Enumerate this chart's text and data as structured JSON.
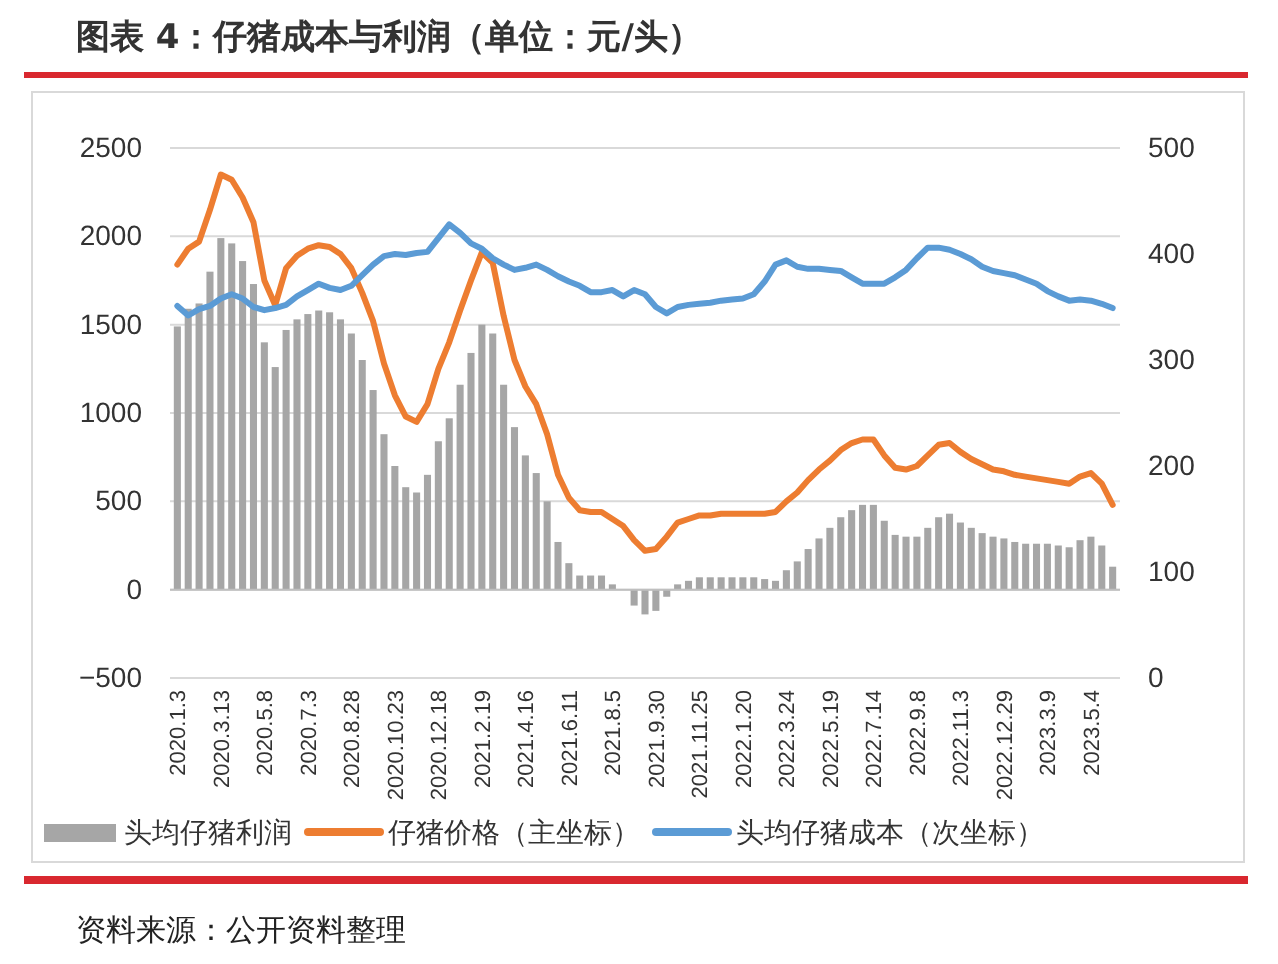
{
  "chart_data": {
    "type": "bar",
    "title": "图表 4：仔猪成本与利润（单位：元/头）",
    "categories": [
      "2020.1.3",
      null,
      null,
      null,
      "2020.3.13",
      null,
      null,
      null,
      "2020.5.8",
      null,
      null,
      null,
      "2020.7.3",
      null,
      null,
      null,
      "2020.8.28",
      null,
      null,
      null,
      "2020.10.23",
      null,
      null,
      null,
      "2020.12.18",
      null,
      null,
      null,
      "2021.2.19",
      null,
      null,
      null,
      "2021.4.16",
      null,
      null,
      null,
      "2021.6.11",
      null,
      null,
      null,
      "2021.8.5",
      null,
      null,
      null,
      "2021.9.30",
      null,
      null,
      null,
      "2021.11.25",
      null,
      null,
      null,
      "2022.1.20",
      null,
      null,
      null,
      "2022.3.24",
      null,
      null,
      null,
      "2022.5.19",
      null,
      null,
      null,
      "2022.7.14",
      null,
      null,
      null,
      "2022.9.8",
      null,
      null,
      null,
      "2022.11.3",
      null,
      null,
      null,
      "2022.12.29",
      null,
      null,
      null,
      "2023.3.9",
      null,
      null,
      null,
      "2023.5.4",
      null,
      null
    ],
    "series": [
      {
        "name": "头均仔猪利润",
        "color": "#a6a6a6",
        "values": [
          1490,
          1590,
          1620,
          1800,
          1990,
          1960,
          1860,
          1730,
          1400,
          1260,
          1470,
          1530,
          1560,
          1580,
          1570,
          1530,
          1450,
          1300,
          1130,
          880,
          700,
          580,
          550,
          650,
          840,
          970,
          1160,
          1340,
          1500,
          1450,
          1160,
          920,
          760,
          660,
          500,
          270,
          150,
          80,
          80,
          80,
          30,
          0,
          -90,
          -140,
          -120,
          -40,
          30,
          50,
          70,
          70,
          70,
          70,
          70,
          70,
          60,
          50,
          110,
          160,
          230,
          290,
          350,
          410,
          450,
          480,
          480,
          390,
          310,
          300,
          300,
          350,
          410,
          430,
          380,
          350,
          320,
          300,
          290,
          270,
          260,
          260,
          260,
          250,
          240,
          280,
          300,
          250,
          130
        ]
      },
      {
        "name": "仔猪价格（主坐标）",
        "type": "line",
        "color": "#ed7d31",
        "values": [
          1840,
          1930,
          1970,
          2150,
          2350,
          2320,
          2220,
          2080,
          1750,
          1610,
          1820,
          1890,
          1930,
          1950,
          1940,
          1900,
          1820,
          1680,
          1520,
          1280,
          1100,
          980,
          950,
          1050,
          1250,
          1400,
          1580,
          1750,
          1910,
          1850,
          1550,
          1300,
          1150,
          1050,
          880,
          650,
          520,
          450,
          440,
          440,
          400,
          360,
          280,
          220,
          230,
          300,
          380,
          400,
          420,
          420,
          430,
          430,
          430,
          430,
          430,
          440,
          500,
          550,
          620,
          680,
          730,
          790,
          830,
          850,
          850,
          760,
          690,
          680,
          700,
          760,
          820,
          830,
          780,
          740,
          710,
          680,
          670,
          650,
          640,
          630,
          620,
          610,
          600,
          640,
          660,
          600,
          480
        ]
      },
      {
        "name": "头均仔猪成本（次坐标）",
        "type": "line",
        "axis": "y2",
        "color": "#5b9bd5",
        "values": [
          351,
          342,
          348,
          351,
          358,
          362,
          358,
          350,
          347,
          349,
          352,
          360,
          366,
          372,
          368,
          366,
          370,
          380,
          390,
          398,
          400,
          399,
          401,
          402,
          415,
          428,
          420,
          410,
          405,
          396,
          390,
          385,
          387,
          390,
          385,
          379,
          374,
          370,
          364,
          364,
          366,
          360,
          366,
          362,
          350,
          344,
          350,
          352,
          353,
          354,
          356,
          357,
          358,
          362,
          374,
          390,
          394,
          388,
          386,
          386,
          385,
          384,
          378,
          372,
          372,
          372,
          378,
          385,
          396,
          406,
          406,
          404,
          400,
          395,
          388,
          384,
          382,
          380,
          376,
          372,
          365,
          360,
          356,
          357,
          356,
          353,
          349
        ]
      }
    ],
    "ylim": [
      -500,
      2500
    ],
    "yticks": [
      -500,
      0,
      500,
      1000,
      1500,
      2000,
      2500
    ],
    "y2lim": [
      0,
      500
    ],
    "y2ticks": [
      0,
      100,
      200,
      300,
      400,
      500
    ],
    "grid": "y",
    "legend": "bottom",
    "annotations": [
      "资料来源：公开资料整理"
    ]
  }
}
